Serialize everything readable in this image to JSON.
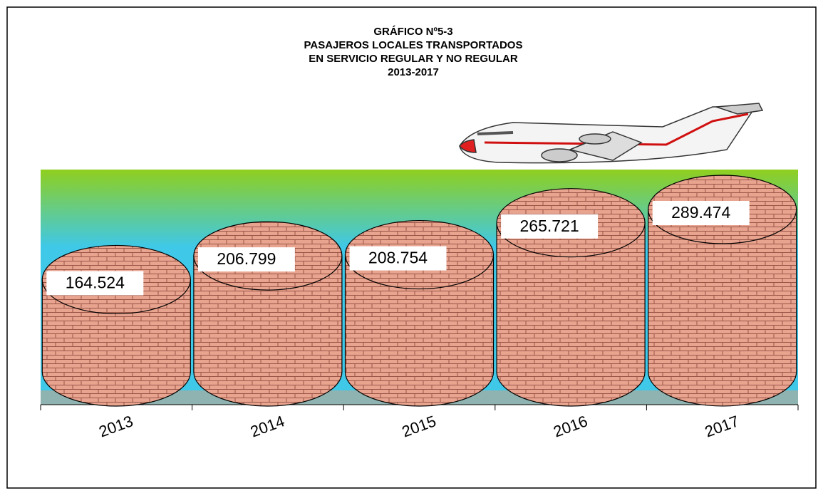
{
  "chart_data": {
    "type": "cylinder",
    "title": [
      "GRÁFICO Nº5-3",
      "PASAJEROS LOCALES TRANSPORTADOS",
      "EN SERVICIO REGULAR Y NO REGULAR",
      "2013-2017"
    ],
    "categories": [
      "2013",
      "2014",
      "2015",
      "2016",
      "2017"
    ],
    "values": [
      164524,
      206799,
      208754,
      265721,
      289474
    ],
    "value_labels": [
      "164.524",
      "206.799",
      "208.754",
      "265.721",
      "289.474"
    ],
    "color": "#e8a48f"
  }
}
